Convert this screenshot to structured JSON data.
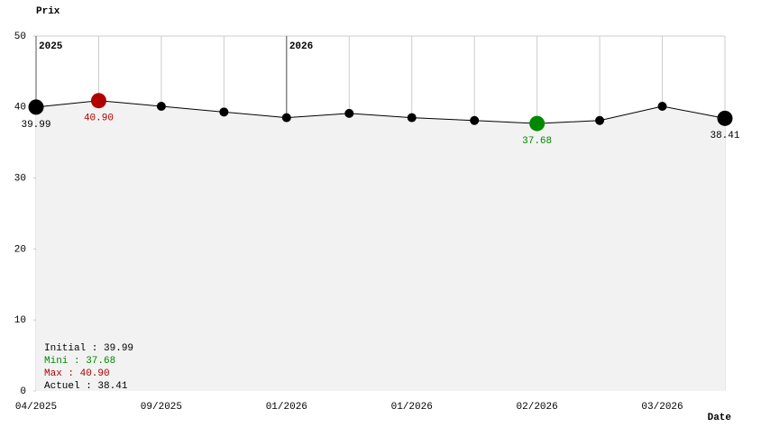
{
  "chart_data": {
    "type": "line",
    "y_label": "Prix",
    "x_label": "Date",
    "categories": [
      "04/2025",
      null,
      "09/2025",
      null,
      "01/2026",
      null,
      "01/2026",
      null,
      "02/2026",
      null,
      "03/2026",
      null
    ],
    "year_labels": [
      "2025",
      null,
      null,
      null,
      "2026",
      null,
      null,
      null,
      null,
      null,
      null,
      null
    ],
    "series": [
      {
        "color": "#000000",
        "values": [
          39.99,
          40.9,
          40.1,
          39.3,
          38.5,
          39.1,
          38.5,
          38.1,
          37.68,
          38.1,
          40.1,
          38.41
        ],
        "value_labels": [
          "39.99",
          "40.90",
          null,
          null,
          null,
          null,
          null,
          null,
          "37.68",
          null,
          null,
          "38.41"
        ],
        "point_colors": [
          "#000000",
          "#b00000",
          "#000000",
          "#000000",
          "#000000",
          "#000000",
          "#000000",
          "#000000",
          "#008800",
          "#000000",
          "#000000",
          "#000000"
        ]
      }
    ],
    "ylim": [
      0,
      50
    ],
    "yticks": [
      0,
      10,
      20,
      30,
      40,
      50
    ],
    "area_color": "#f2f2f2",
    "grid": true,
    "summary": [
      {
        "text": "Initial : 39.99",
        "color": "#000000"
      },
      {
        "text": "Mini : 37.68",
        "color": "#008800"
      },
      {
        "text": "Max : 40.90",
        "color": "#b00000"
      },
      {
        "text": "Actuel : 38.41",
        "color": "#000000"
      }
    ]
  }
}
